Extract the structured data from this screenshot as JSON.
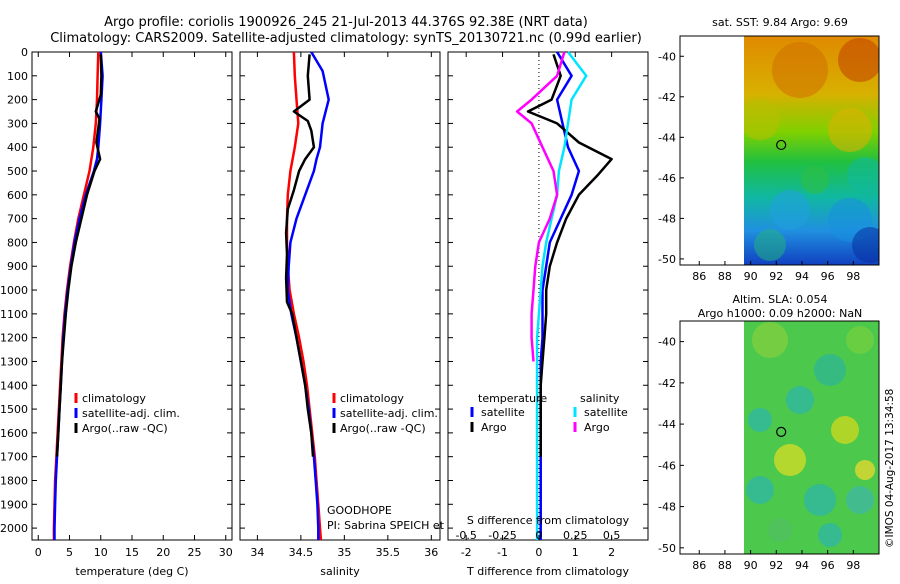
{
  "header": {
    "line1": "Argo profile: coriolis 1900926_245 21-Jul-2013 44.376S 92.38E (NRT data)",
    "line2": "Climatology: CARS2009. Satellite-adjusted climatology: synTS_20130721.nc (0.99d earlier)"
  },
  "colors": {
    "climatology": "#ff0000",
    "satellite": "#0000ff",
    "argo": "#000000",
    "sat_salinity": "#00e5ff",
    "argo_salinity": "#ff00ff"
  },
  "chart_data": [
    {
      "id": "temperature",
      "type": "line",
      "xlabel": "temperature (deg C)",
      "xlim": [
        -1,
        31
      ],
      "xticks": [
        0,
        5,
        10,
        15,
        20,
        25,
        30
      ],
      "ylim": [
        0,
        2050
      ],
      "yticks": [
        0,
        100,
        200,
        300,
        400,
        500,
        600,
        700,
        800,
        900,
        1000,
        1100,
        1200,
        1300,
        1400,
        1500,
        1600,
        1700,
        1800,
        1900,
        2000
      ],
      "legend": {
        "position": "center",
        "entries": [
          "climatology",
          "satellite-adj. clim.",
          "Argo(..raw -QC)"
        ]
      },
      "series": [
        {
          "name": "climatology",
          "color": "#ff0000",
          "points": [
            [
              9.6,
              0
            ],
            [
              9.5,
              100
            ],
            [
              9.4,
              200
            ],
            [
              9.2,
              300
            ],
            [
              8.8,
              400
            ],
            [
              8.2,
              500
            ],
            [
              7.3,
              600
            ],
            [
              6.4,
              700
            ],
            [
              5.7,
              800
            ],
            [
              5.1,
              900
            ],
            [
              4.6,
              1000
            ],
            [
              4.2,
              1100
            ],
            [
              3.9,
              1200
            ],
            [
              3.7,
              1300
            ],
            [
              3.5,
              1400
            ],
            [
              3.3,
              1500
            ],
            [
              3.1,
              1600
            ],
            [
              2.9,
              1700
            ],
            [
              2.7,
              1800
            ],
            [
              2.6,
              1900
            ],
            [
              2.5,
              2000
            ],
            [
              2.5,
              2050
            ]
          ]
        },
        {
          "name": "satellite-adj. clim.",
          "color": "#0000ff",
          "points": [
            [
              10.0,
              0
            ],
            [
              10.3,
              100
            ],
            [
              10.1,
              200
            ],
            [
              9.9,
              300
            ],
            [
              9.6,
              400
            ],
            [
              9.4,
              450
            ],
            [
              8.9,
              500
            ],
            [
              7.6,
              600
            ],
            [
              6.6,
              700
            ],
            [
              5.8,
              800
            ],
            [
              5.2,
              900
            ],
            [
              4.7,
              1000
            ],
            [
              4.3,
              1100
            ],
            [
              4.0,
              1200
            ],
            [
              3.8,
              1300
            ],
            [
              3.6,
              1400
            ],
            [
              3.4,
              1500
            ],
            [
              3.2,
              1600
            ],
            [
              3.0,
              1700
            ],
            [
              2.8,
              1800
            ],
            [
              2.7,
              1900
            ],
            [
              2.6,
              2000
            ],
            [
              2.6,
              2050
            ]
          ]
        },
        {
          "name": "Argo(..raw -QC)",
          "color": "#000000",
          "points": [
            [
              10.0,
              10
            ],
            [
              10.1,
              100
            ],
            [
              10.0,
              180
            ],
            [
              9.2,
              250
            ],
            [
              9.8,
              280
            ],
            [
              9.6,
              320
            ],
            [
              9.3,
              380
            ],
            [
              9.9,
              450
            ],
            [
              9.0,
              500
            ],
            [
              7.8,
              600
            ],
            [
              6.9,
              700
            ],
            [
              6.0,
              800
            ],
            [
              5.3,
              900
            ],
            [
              4.8,
              1000
            ],
            [
              4.4,
              1100
            ],
            [
              4.1,
              1200
            ],
            [
              3.8,
              1300
            ],
            [
              3.6,
              1400
            ],
            [
              3.4,
              1500
            ],
            [
              3.2,
              1600
            ],
            [
              3.0,
              1700
            ]
          ]
        }
      ]
    },
    {
      "id": "salinity",
      "type": "line",
      "xlabel": "salinity",
      "xlim": [
        33.8,
        36.1
      ],
      "xticks": [
        34,
        34.5,
        35,
        35.5,
        36
      ],
      "xticklabels": [
        "34",
        "34.5",
        "35",
        "35.5",
        "36"
      ],
      "ylim": [
        0,
        2050
      ],
      "legend": {
        "position": "center",
        "entries": [
          "climatology",
          "satellite-adj. clim.",
          "Argo(..raw -QC)"
        ]
      },
      "annotation": [
        "GOODHOPE",
        "PI: Sabrina SPEICH et Michel ARHAN"
      ],
      "series": [
        {
          "name": "climatology",
          "color": "#ff0000",
          "points": [
            [
              34.42,
              0
            ],
            [
              34.43,
              100
            ],
            [
              34.45,
              200
            ],
            [
              34.47,
              300
            ],
            [
              34.43,
              400
            ],
            [
              34.38,
              500
            ],
            [
              34.35,
              600
            ],
            [
              34.34,
              700
            ],
            [
              34.34,
              800
            ],
            [
              34.35,
              900
            ],
            [
              34.37,
              1000
            ],
            [
              34.42,
              1100
            ],
            [
              34.48,
              1200
            ],
            [
              34.53,
              1300
            ],
            [
              34.57,
              1400
            ],
            [
              34.6,
              1500
            ],
            [
              34.63,
              1600
            ],
            [
              34.66,
              1700
            ],
            [
              34.68,
              1800
            ],
            [
              34.7,
              1900
            ],
            [
              34.72,
              2000
            ],
            [
              34.73,
              2050
            ]
          ]
        },
        {
          "name": "satellite-adj. clim.",
          "color": "#0000ff",
          "points": [
            [
              34.62,
              0
            ],
            [
              34.75,
              80
            ],
            [
              34.82,
              200
            ],
            [
              34.75,
              300
            ],
            [
              34.72,
              400
            ],
            [
              34.68,
              450
            ],
            [
              34.65,
              500
            ],
            [
              34.55,
              600
            ],
            [
              34.45,
              700
            ],
            [
              34.38,
              800
            ],
            [
              34.36,
              900
            ],
            [
              34.35,
              1000
            ],
            [
              34.39,
              1100
            ],
            [
              34.45,
              1200
            ],
            [
              34.5,
              1300
            ],
            [
              34.55,
              1400
            ],
            [
              34.59,
              1500
            ],
            [
              34.62,
              1600
            ],
            [
              34.65,
              1700
            ],
            [
              34.67,
              1800
            ],
            [
              34.69,
              1900
            ],
            [
              34.7,
              2000
            ],
            [
              34.7,
              2050
            ]
          ]
        },
        {
          "name": "Argo(..raw -QC)",
          "color": "#000000",
          "points": [
            [
              34.6,
              10
            ],
            [
              34.58,
              100
            ],
            [
              34.6,
              200
            ],
            [
              34.42,
              250
            ],
            [
              34.58,
              290
            ],
            [
              34.62,
              330
            ],
            [
              34.65,
              400
            ],
            [
              34.55,
              450
            ],
            [
              34.48,
              500
            ],
            [
              34.42,
              580
            ],
            [
              34.35,
              660
            ],
            [
              34.33,
              760
            ],
            [
              34.34,
              850
            ],
            [
              34.33,
              950
            ],
            [
              34.34,
              1050
            ],
            [
              34.4,
              1100
            ],
            [
              34.45,
              1200
            ],
            [
              34.5,
              1300
            ],
            [
              34.55,
              1400
            ],
            [
              34.58,
              1500
            ],
            [
              34.62,
              1600
            ],
            [
              34.64,
              1700
            ]
          ]
        }
      ]
    },
    {
      "id": "difference",
      "type": "line",
      "xlabel": "T difference from climatology",
      "top_xlabel": "S difference from climatology",
      "xlim": [
        -2.5,
        3
      ],
      "xticks": [
        -2,
        -1,
        0,
        1,
        2
      ],
      "top_xticks": [
        -0.5,
        -0.25,
        0,
        0.25,
        0.5
      ],
      "top_xticklabels": [
        "-0.5",
        "-0.25",
        "0",
        "0.25",
        "0.5"
      ],
      "ylim": [
        0,
        2050
      ],
      "legend": {
        "position": "bottom",
        "groups": [
          {
            "title": "temperature",
            "entries": [
              "satellite",
              "Argo"
            ]
          },
          {
            "title": "salinity",
            "entries": [
              "satellite",
              "Argo"
            ]
          }
        ]
      },
      "series": [
        {
          "name": "satellite",
          "group": "temperature",
          "color": "#0000ff",
          "points": [
            [
              0.5,
              0
            ],
            [
              0.9,
              100
            ],
            [
              0.5,
              200
            ],
            [
              0.65,
              300
            ],
            [
              0.8,
              400
            ],
            [
              1.1,
              500
            ],
            [
              0.9,
              600
            ],
            [
              0.6,
              700
            ],
            [
              0.3,
              800
            ],
            [
              0.2,
              900
            ],
            [
              0.1,
              1000
            ],
            [
              0.1,
              1100
            ],
            [
              0.1,
              1200
            ],
            [
              0.05,
              1300
            ],
            [
              0.05,
              1400
            ],
            [
              0.05,
              1500
            ],
            [
              0.05,
              1600
            ],
            [
              0.05,
              1700
            ],
            [
              0.05,
              1800
            ],
            [
              0.05,
              1900
            ],
            [
              0.05,
              2000
            ],
            [
              0.05,
              2050
            ]
          ]
        },
        {
          "name": "Argo",
          "group": "temperature",
          "color": "#000000",
          "points": [
            [
              0.4,
              10
            ],
            [
              0.6,
              100
            ],
            [
              0.35,
              200
            ],
            [
              -0.3,
              250
            ],
            [
              0.5,
              300
            ],
            [
              1.1,
              380
            ],
            [
              2.0,
              450
            ],
            [
              1.6,
              520
            ],
            [
              1.1,
              600
            ],
            [
              0.75,
              700
            ],
            [
              0.5,
              800
            ],
            [
              0.3,
              900
            ],
            [
              0.2,
              1000
            ],
            [
              0.2,
              1100
            ],
            [
              0.15,
              1200
            ],
            [
              0.1,
              1300
            ],
            [
              0.05,
              1400
            ],
            [
              0.05,
              1500
            ],
            [
              0.05,
              1600
            ],
            [
              0.05,
              1700
            ]
          ]
        },
        {
          "name": "satellite",
          "group": "salinity",
          "color": "#00e5ff",
          "points": [
            [
              0.8,
              0
            ],
            [
              1.3,
              100
            ],
            [
              0.9,
              200
            ],
            [
              0.8,
              300
            ],
            [
              0.7,
              400
            ],
            [
              0.55,
              500
            ],
            [
              0.5,
              600
            ],
            [
              0.35,
              700
            ],
            [
              0.2,
              800
            ],
            [
              0.1,
              900
            ],
            [
              0.05,
              1000
            ],
            [
              0.0,
              1100
            ],
            [
              -0.05,
              1200
            ],
            [
              -0.05,
              1300
            ],
            [
              -0.05,
              1400
            ],
            [
              -0.05,
              1500
            ],
            [
              -0.05,
              1600
            ],
            [
              -0.05,
              1700
            ],
            [
              -0.05,
              1800
            ],
            [
              -0.05,
              1900
            ],
            [
              -0.05,
              2000
            ],
            [
              -0.05,
              2050
            ]
          ]
        },
        {
          "name": "Argo",
          "group": "salinity",
          "color": "#ff00ff",
          "points": [
            [
              0.7,
              0
            ],
            [
              0.5,
              100
            ],
            [
              -0.2,
              200
            ],
            [
              -0.6,
              250
            ],
            [
              -0.2,
              300
            ],
            [
              0.1,
              400
            ],
            [
              0.4,
              500
            ],
            [
              0.5,
              600
            ],
            [
              0.3,
              700
            ],
            [
              0.0,
              800
            ],
            [
              -0.1,
              900
            ],
            [
              -0.15,
              1000
            ],
            [
              -0.2,
              1100
            ],
            [
              -0.2,
              1200
            ],
            [
              -0.15,
              1300
            ]
          ]
        }
      ]
    },
    {
      "id": "sst-map",
      "type": "heatmap",
      "title": "sat. SST: 9.84  Argo: 9.69",
      "xlim": [
        84.5,
        100
      ],
      "ylim": [
        -50.3,
        -39
      ],
      "xticks": [
        86,
        88,
        90,
        92,
        94,
        96,
        98
      ],
      "yticks": [
        -40,
        -42,
        -44,
        -46,
        -48,
        -50
      ],
      "marker": {
        "lon": 92.38,
        "lat": -44.376
      }
    },
    {
      "id": "sla-map",
      "type": "heatmap",
      "title": "Altim. SLA: 0.054",
      "subtitle": "Argo h1000: 0.09 h2000: NaN",
      "xlim": [
        84.5,
        100
      ],
      "ylim": [
        -50.3,
        -39
      ],
      "xticks": [
        86,
        88,
        90,
        92,
        94,
        96,
        98
      ],
      "yticks": [
        -40,
        -42,
        -44,
        -46,
        -48,
        -50
      ],
      "marker": {
        "lon": 92.38,
        "lat": -44.376
      }
    }
  ],
  "footer": {
    "stamp": "©IMOS 04-Aug-2017 13:34:58"
  }
}
